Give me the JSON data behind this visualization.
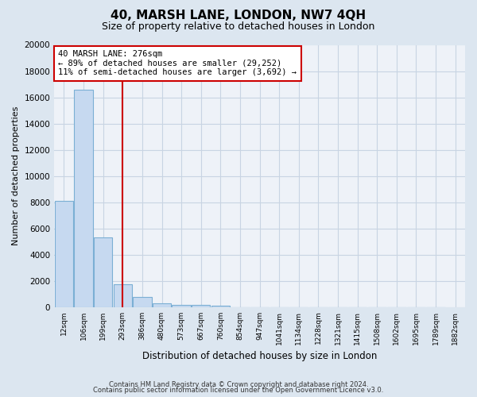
{
  "title": "40, MARSH LANE, LONDON, NW7 4QH",
  "subtitle": "Size of property relative to detached houses in London",
  "xlabel": "Distribution of detached houses by size in London",
  "ylabel": "Number of detached properties",
  "bar_color": "#c6d9f0",
  "bar_edge_color": "#7bafd4",
  "figure_bg": "#dce6f0",
  "plot_bg": "#eef2f8",
  "grid_color": "#c8d4e3",
  "vline_color": "#cc0000",
  "bin_labels": [
    "12sqm",
    "106sqm",
    "199sqm",
    "293sqm",
    "386sqm",
    "480sqm",
    "573sqm",
    "667sqm",
    "760sqm",
    "854sqm",
    "947sqm",
    "1041sqm",
    "1134sqm",
    "1228sqm",
    "1321sqm",
    "1415sqm",
    "1508sqm",
    "1602sqm",
    "1695sqm",
    "1789sqm",
    "1882sqm"
  ],
  "bar_heights": [
    8100,
    16600,
    5300,
    1750,
    750,
    290,
    135,
    170,
    100,
    0,
    0,
    0,
    0,
    0,
    0,
    0,
    0,
    0,
    0,
    0
  ],
  "vline_pos": 2.97,
  "ylim": [
    0,
    20000
  ],
  "yticks": [
    0,
    2000,
    4000,
    6000,
    8000,
    10000,
    12000,
    14000,
    16000,
    18000,
    20000
  ],
  "annotation_line1": "40 MARSH LANE: 276sqm",
  "annotation_line2": "← 89% of detached houses are smaller (29,252)",
  "annotation_line3": "11% of semi-detached houses are larger (3,692) →",
  "annotation_box_color": "#ffffff",
  "annotation_box_edge": "#cc0000",
  "footer1": "Contains HM Land Registry data © Crown copyright and database right 2024.",
  "footer2": "Contains public sector information licensed under the Open Government Licence v3.0."
}
